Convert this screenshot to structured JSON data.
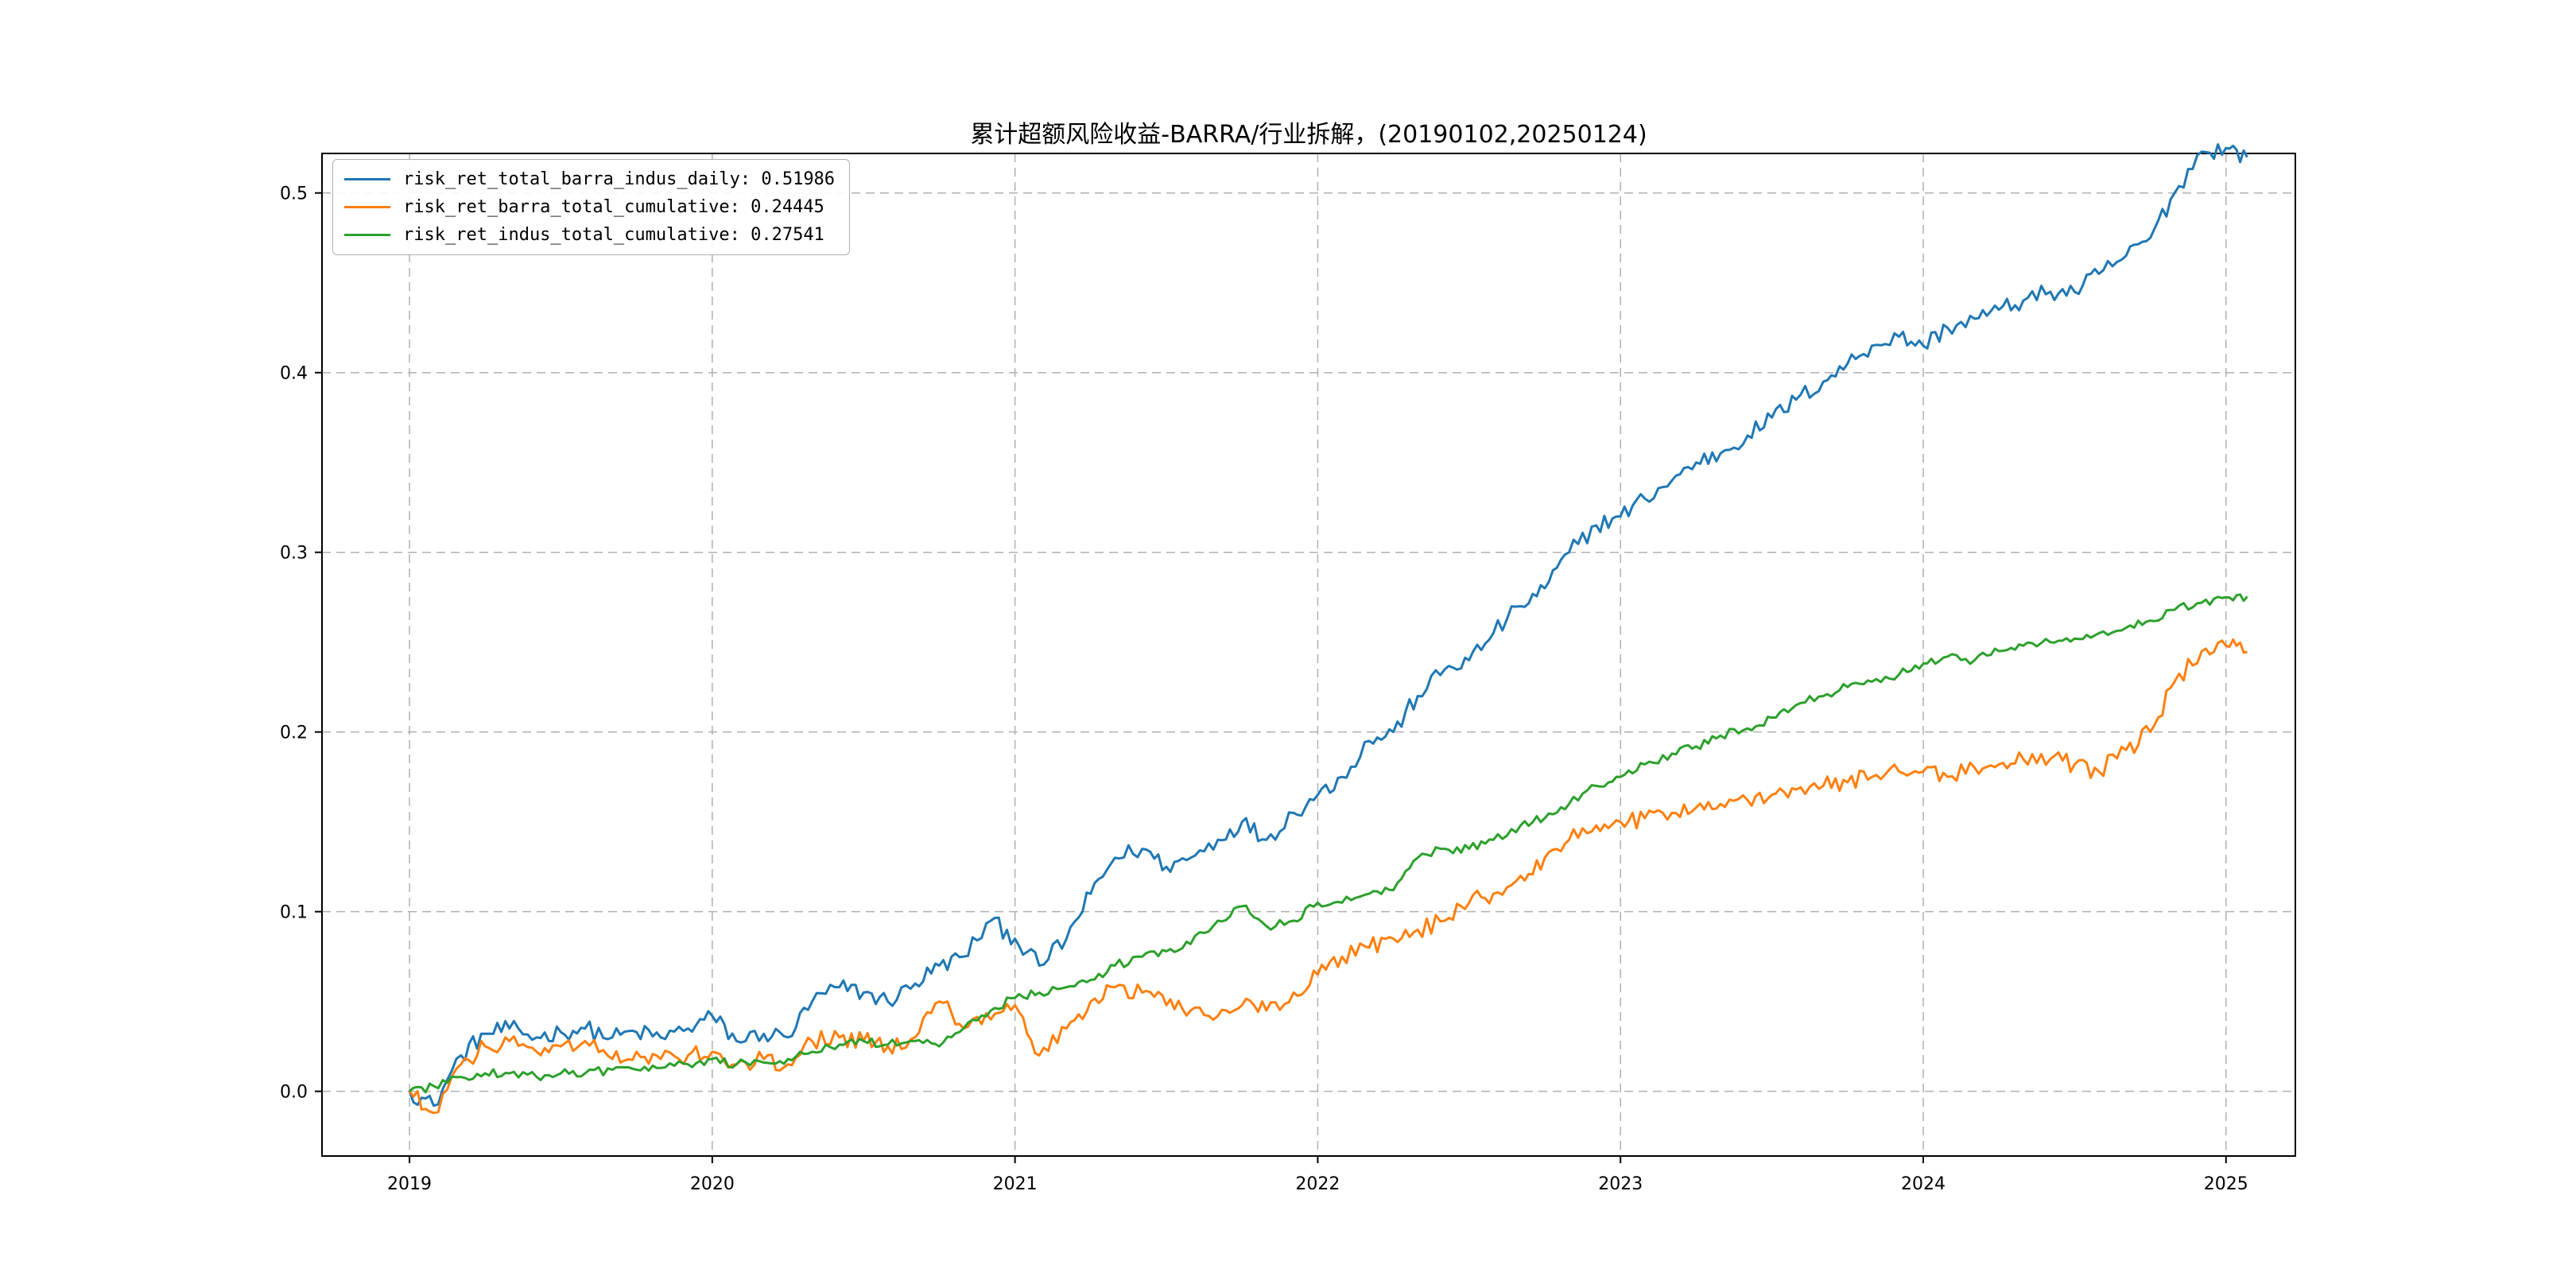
{
  "page": {
    "background": "#ffffff"
  },
  "chart_data": {
    "type": "line",
    "title": "累计超额风险收益-BARRA/行业拆解，(20190102,20250124)",
    "date_range": [
      "20190102",
      "20250124"
    ],
    "xlabel": "",
    "ylabel": "",
    "xlim": [
      2018.711,
      2025.229
    ],
    "ylim": [
      -0.036,
      0.522
    ],
    "xticks": [
      2019,
      2020,
      2021,
      2022,
      2023,
      2024,
      2025
    ],
    "xtick_labels": [
      "2019",
      "2020",
      "2021",
      "2022",
      "2023",
      "2024",
      "2025"
    ],
    "yticks": [
      0.0,
      0.1,
      0.2,
      0.3,
      0.4,
      0.5
    ],
    "ytick_labels": [
      "0.0",
      "0.1",
      "0.2",
      "0.3",
      "0.4",
      "0.5"
    ],
    "grid": {
      "on": true,
      "style": "dashed",
      "color": "#b0b0b0"
    },
    "legend": {
      "position": "upper-left"
    },
    "series": [
      {
        "name": "risk_ret_total_barra_indus_daily",
        "label": "risk_ret_total_barra_indus_daily: 0.51986",
        "final_value": 0.51986,
        "color": "#1f77b4",
        "noise": 0.005,
        "points": [
          [
            2019.0,
            0.0
          ],
          [
            2019.08,
            -0.008
          ],
          [
            2019.17,
            0.02
          ],
          [
            2019.25,
            0.032
          ],
          [
            2019.33,
            0.035
          ],
          [
            2019.42,
            0.03
          ],
          [
            2019.5,
            0.033
          ],
          [
            2019.58,
            0.035
          ],
          [
            2019.67,
            0.03
          ],
          [
            2019.75,
            0.033
          ],
          [
            2019.83,
            0.03
          ],
          [
            2019.92,
            0.035
          ],
          [
            2020.0,
            0.042
          ],
          [
            2020.08,
            0.028
          ],
          [
            2020.17,
            0.032
          ],
          [
            2020.25,
            0.03
          ],
          [
            2020.33,
            0.05
          ],
          [
            2020.42,
            0.058
          ],
          [
            2020.5,
            0.055
          ],
          [
            2020.58,
            0.05
          ],
          [
            2020.67,
            0.06
          ],
          [
            2020.75,
            0.07
          ],
          [
            2020.83,
            0.075
          ],
          [
            2020.92,
            0.095
          ],
          [
            2021.0,
            0.085
          ],
          [
            2021.08,
            0.07
          ],
          [
            2021.17,
            0.085
          ],
          [
            2021.25,
            0.11
          ],
          [
            2021.33,
            0.13
          ],
          [
            2021.42,
            0.135
          ],
          [
            2021.5,
            0.125
          ],
          [
            2021.58,
            0.13
          ],
          [
            2021.67,
            0.14
          ],
          [
            2021.75,
            0.15
          ],
          [
            2021.83,
            0.14
          ],
          [
            2021.92,
            0.155
          ],
          [
            2022.0,
            0.165
          ],
          [
            2022.08,
            0.175
          ],
          [
            2022.17,
            0.195
          ],
          [
            2022.25,
            0.2
          ],
          [
            2022.33,
            0.22
          ],
          [
            2022.42,
            0.235
          ],
          [
            2022.5,
            0.24
          ],
          [
            2022.58,
            0.255
          ],
          [
            2022.67,
            0.27
          ],
          [
            2022.75,
            0.28
          ],
          [
            2022.83,
            0.3
          ],
          [
            2022.92,
            0.315
          ],
          [
            2023.0,
            0.32
          ],
          [
            2023.08,
            0.33
          ],
          [
            2023.17,
            0.34
          ],
          [
            2023.25,
            0.35
          ],
          [
            2023.33,
            0.355
          ],
          [
            2023.42,
            0.365
          ],
          [
            2023.5,
            0.375
          ],
          [
            2023.58,
            0.385
          ],
          [
            2023.67,
            0.395
          ],
          [
            2023.75,
            0.405
          ],
          [
            2023.83,
            0.415
          ],
          [
            2023.92,
            0.42
          ],
          [
            2024.0,
            0.415
          ],
          [
            2024.08,
            0.425
          ],
          [
            2024.17,
            0.43
          ],
          [
            2024.25,
            0.435
          ],
          [
            2024.33,
            0.44
          ],
          [
            2024.42,
            0.445
          ],
          [
            2024.5,
            0.445
          ],
          [
            2024.58,
            0.455
          ],
          [
            2024.67,
            0.465
          ],
          [
            2024.75,
            0.475
          ],
          [
            2024.83,
            0.5
          ],
          [
            2024.92,
            0.523
          ],
          [
            2025.0,
            0.525
          ],
          [
            2025.07,
            0.5199
          ]
        ]
      },
      {
        "name": "risk_ret_barra_total_cumulative",
        "label": "risk_ret_barra_total_cumulative: 0.24445",
        "final_value": 0.24445,
        "color": "#ff7f0e",
        "noise": 0.005,
        "points": [
          [
            2019.0,
            0.0
          ],
          [
            2019.08,
            -0.012
          ],
          [
            2019.17,
            0.015
          ],
          [
            2019.25,
            0.025
          ],
          [
            2019.33,
            0.028
          ],
          [
            2019.42,
            0.022
          ],
          [
            2019.5,
            0.025
          ],
          [
            2019.58,
            0.028
          ],
          [
            2019.67,
            0.018
          ],
          [
            2019.75,
            0.022
          ],
          [
            2019.83,
            0.018
          ],
          [
            2019.92,
            0.02
          ],
          [
            2020.0,
            0.022
          ],
          [
            2020.08,
            0.015
          ],
          [
            2020.17,
            0.018
          ],
          [
            2020.25,
            0.015
          ],
          [
            2020.33,
            0.028
          ],
          [
            2020.42,
            0.03
          ],
          [
            2020.5,
            0.028
          ],
          [
            2020.58,
            0.025
          ],
          [
            2020.67,
            0.03
          ],
          [
            2020.75,
            0.05
          ],
          [
            2020.83,
            0.035
          ],
          [
            2020.92,
            0.04
          ],
          [
            2021.0,
            0.048
          ],
          [
            2021.08,
            0.02
          ],
          [
            2021.17,
            0.035
          ],
          [
            2021.25,
            0.05
          ],
          [
            2021.33,
            0.058
          ],
          [
            2021.42,
            0.055
          ],
          [
            2021.5,
            0.048
          ],
          [
            2021.58,
            0.045
          ],
          [
            2021.67,
            0.042
          ],
          [
            2021.75,
            0.048
          ],
          [
            2021.83,
            0.045
          ],
          [
            2021.92,
            0.055
          ],
          [
            2022.0,
            0.065
          ],
          [
            2022.08,
            0.075
          ],
          [
            2022.17,
            0.08
          ],
          [
            2022.25,
            0.085
          ],
          [
            2022.33,
            0.09
          ],
          [
            2022.42,
            0.095
          ],
          [
            2022.5,
            0.105
          ],
          [
            2022.58,
            0.11
          ],
          [
            2022.67,
            0.12
          ],
          [
            2022.75,
            0.13
          ],
          [
            2022.83,
            0.14
          ],
          [
            2022.92,
            0.148
          ],
          [
            2023.0,
            0.15
          ],
          [
            2023.08,
            0.152
          ],
          [
            2023.17,
            0.155
          ],
          [
            2023.25,
            0.158
          ],
          [
            2023.33,
            0.16
          ],
          [
            2023.42,
            0.162
          ],
          [
            2023.5,
            0.165
          ],
          [
            2023.58,
            0.168
          ],
          [
            2023.67,
            0.17
          ],
          [
            2023.75,
            0.172
          ],
          [
            2023.83,
            0.175
          ],
          [
            2023.92,
            0.178
          ],
          [
            2024.0,
            0.178
          ],
          [
            2024.08,
            0.175
          ],
          [
            2024.17,
            0.18
          ],
          [
            2024.25,
            0.182
          ],
          [
            2024.33,
            0.185
          ],
          [
            2024.42,
            0.185
          ],
          [
            2024.5,
            0.182
          ],
          [
            2024.58,
            0.178
          ],
          [
            2024.67,
            0.19
          ],
          [
            2024.75,
            0.2
          ],
          [
            2024.83,
            0.228
          ],
          [
            2024.92,
            0.245
          ],
          [
            2025.0,
            0.248
          ],
          [
            2025.07,
            0.2445
          ]
        ]
      },
      {
        "name": "risk_ret_indus_total_cumulative",
        "label": "risk_ret_indus_total_cumulative: 0.27541",
        "final_value": 0.27541,
        "color": "#2ca02c",
        "noise": 0.0025,
        "points": [
          [
            2019.0,
            0.0
          ],
          [
            2019.08,
            0.003
          ],
          [
            2019.17,
            0.008
          ],
          [
            2019.25,
            0.01
          ],
          [
            2019.33,
            0.01
          ],
          [
            2019.42,
            0.008
          ],
          [
            2019.5,
            0.01
          ],
          [
            2019.58,
            0.01
          ],
          [
            2019.67,
            0.012
          ],
          [
            2019.75,
            0.012
          ],
          [
            2019.83,
            0.013
          ],
          [
            2019.92,
            0.015
          ],
          [
            2020.0,
            0.018
          ],
          [
            2020.08,
            0.015
          ],
          [
            2020.17,
            0.016
          ],
          [
            2020.25,
            0.018
          ],
          [
            2020.33,
            0.022
          ],
          [
            2020.42,
            0.026
          ],
          [
            2020.5,
            0.028
          ],
          [
            2020.58,
            0.026
          ],
          [
            2020.67,
            0.028
          ],
          [
            2020.75,
            0.025
          ],
          [
            2020.83,
            0.035
          ],
          [
            2020.92,
            0.045
          ],
          [
            2021.0,
            0.052
          ],
          [
            2021.08,
            0.055
          ],
          [
            2021.17,
            0.058
          ],
          [
            2021.25,
            0.062
          ],
          [
            2021.33,
            0.07
          ],
          [
            2021.42,
            0.075
          ],
          [
            2021.5,
            0.078
          ],
          [
            2021.58,
            0.082
          ],
          [
            2021.67,
            0.095
          ],
          [
            2021.75,
            0.103
          ],
          [
            2021.83,
            0.092
          ],
          [
            2021.92,
            0.095
          ],
          [
            2022.0,
            0.105
          ],
          [
            2022.08,
            0.105
          ],
          [
            2022.17,
            0.11
          ],
          [
            2022.25,
            0.112
          ],
          [
            2022.33,
            0.13
          ],
          [
            2022.42,
            0.135
          ],
          [
            2022.5,
            0.135
          ],
          [
            2022.58,
            0.14
          ],
          [
            2022.67,
            0.148
          ],
          [
            2022.75,
            0.152
          ],
          [
            2022.83,
            0.16
          ],
          [
            2022.92,
            0.17
          ],
          [
            2023.0,
            0.175
          ],
          [
            2023.08,
            0.182
          ],
          [
            2023.17,
            0.188
          ],
          [
            2023.25,
            0.192
          ],
          [
            2023.33,
            0.198
          ],
          [
            2023.42,
            0.202
          ],
          [
            2023.5,
            0.208
          ],
          [
            2023.58,
            0.215
          ],
          [
            2023.67,
            0.22
          ],
          [
            2023.75,
            0.225
          ],
          [
            2023.83,
            0.228
          ],
          [
            2023.92,
            0.232
          ],
          [
            2024.0,
            0.238
          ],
          [
            2024.08,
            0.242
          ],
          [
            2024.17,
            0.24
          ],
          [
            2024.25,
            0.245
          ],
          [
            2024.33,
            0.248
          ],
          [
            2024.42,
            0.25
          ],
          [
            2024.5,
            0.252
          ],
          [
            2024.58,
            0.255
          ],
          [
            2024.67,
            0.258
          ],
          [
            2024.75,
            0.262
          ],
          [
            2024.83,
            0.268
          ],
          [
            2024.92,
            0.272
          ],
          [
            2025.0,
            0.275
          ],
          [
            2025.07,
            0.2754
          ]
        ]
      }
    ]
  }
}
